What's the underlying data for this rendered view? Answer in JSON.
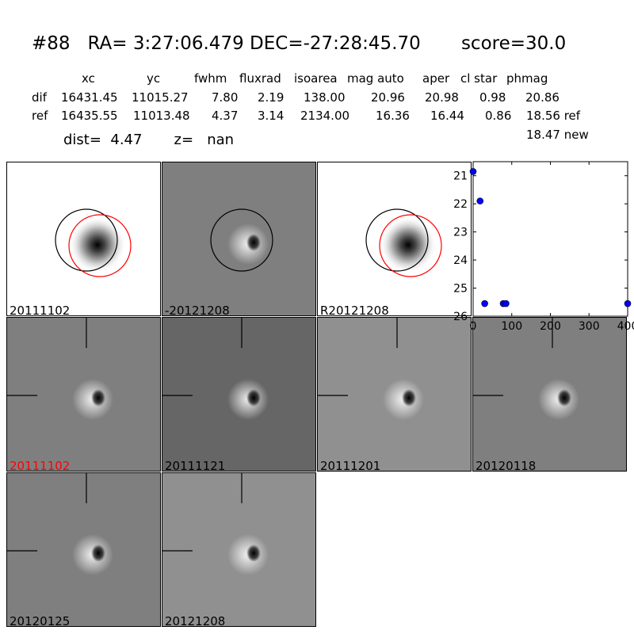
{
  "header": {
    "title": "#88   RA= 3:27:06.479 DEC=-27:28:45.70       score=30.0",
    "columns": [
      "xc",
      "yc",
      "fwhm",
      "fluxrad",
      "isoarea",
      "mag auto",
      "aper",
      "cl star",
      "phmag"
    ],
    "rows": [
      {
        "label": "dif",
        "values": [
          "16431.45",
          "11015.27",
          "7.80",
          "2.19",
          "138.00",
          "20.96",
          "20.98",
          "0.98",
          "20.86"
        ]
      },
      {
        "label": "ref",
        "values": [
          "16435.55",
          "11013.48",
          "4.37",
          "3.14",
          "2134.00",
          "16.36",
          "16.44",
          "0.86",
          "18.56 ref"
        ]
      }
    ],
    "extra_phmag": "18.47 new",
    "dist_text": "dist=  4.47       z=   nan"
  },
  "panels": [
    {
      "label": "20111102",
      "label_color": "#000000",
      "style": "ref",
      "circles": true,
      "red_circle": true
    },
    {
      "label": "-20121208",
      "label_color": "#000000",
      "style": "diff",
      "circles": true,
      "red_circle": false
    },
    {
      "label": "R20121208",
      "label_color": "#000000",
      "style": "ref",
      "circles": true,
      "red_circle": true
    },
    {
      "label": "20111102",
      "label_color": "#ff0000",
      "style": "diff",
      "crosshair": true
    },
    {
      "label": "20111121",
      "label_color": "#000000",
      "style": "diff-dark",
      "crosshair": true
    },
    {
      "label": "20111201",
      "label_color": "#000000",
      "style": "diff-light",
      "crosshair": true
    },
    {
      "label": "20120118",
      "label_color": "#000000",
      "style": "diff",
      "crosshair": true
    },
    {
      "label": "20120125",
      "label_color": "#000000",
      "style": "diff",
      "crosshair": true
    },
    {
      "label": "20121208",
      "label_color": "#000000",
      "style": "diff-light",
      "crosshair": true
    }
  ],
  "chart_data": {
    "type": "scatter",
    "x": [
      0,
      18,
      30,
      78,
      85,
      400
    ],
    "y": [
      20.85,
      21.9,
      25.55,
      25.55,
      25.55,
      25.55
    ],
    "xlim": [
      0,
      400
    ],
    "ylim": [
      26,
      20.5
    ],
    "xticks": [
      "0",
      "100",
      "200",
      "300",
      "400"
    ],
    "yticks": [
      "21",
      "22",
      "23",
      "24",
      "25",
      "26"
    ],
    "point_color": "#0000ff"
  }
}
